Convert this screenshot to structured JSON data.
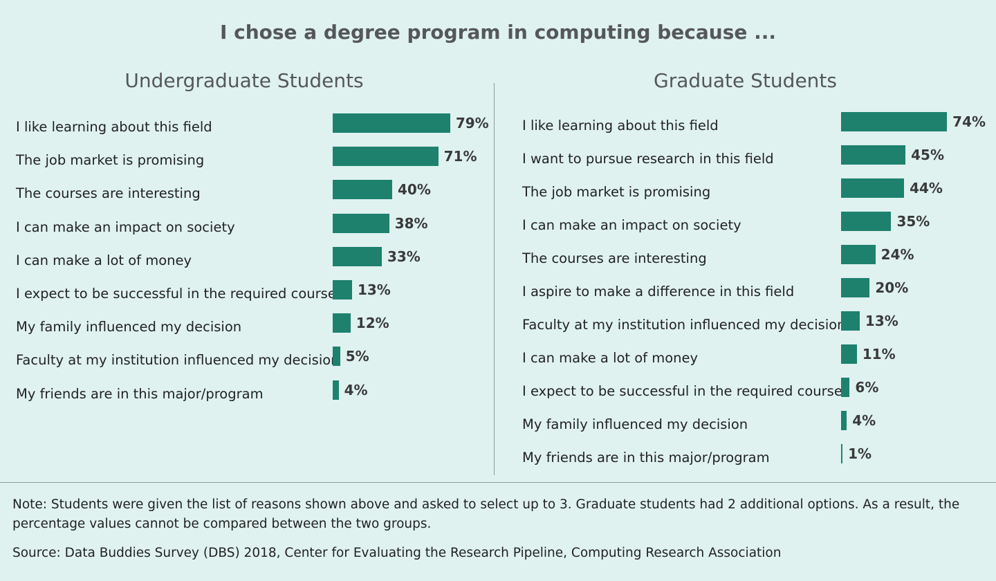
{
  "chart_data": [
    {
      "type": "bar",
      "orientation": "horizontal",
      "title": "I chose a degree program in computing because ...",
      "subtitle": "Undergraduate Students",
      "categories": [
        "I like learning about this field",
        "The job market is promising",
        "The courses are interesting",
        "I can make an impact on society",
        "I can make a lot of money",
        "I expect to be successful in the required courses",
        "My family influenced my decision",
        "Faculty at my institution influenced my decision",
        "My friends are in this major/program"
      ],
      "values": [
        79,
        71,
        40,
        38,
        33,
        13,
        12,
        5,
        4
      ],
      "value_labels": [
        "79%",
        "71%",
        "40%",
        "38%",
        "33%",
        "13%",
        "12%",
        "5%",
        "4%"
      ],
      "unit": "%",
      "color": "#1d816e"
    },
    {
      "type": "bar",
      "orientation": "horizontal",
      "subtitle": "Graduate Students",
      "categories": [
        "I like learning about this field",
        "I want to pursue research in this field",
        "The job market is promising",
        "I can make an impact on society",
        "The courses are interesting",
        "I aspire to make a difference in this field",
        "Faculty at my institution influenced my decision",
        "I can make a lot of money",
        "I expect to be successful in the required courses",
        "My family influenced my decision",
        "My friends are in this major/program"
      ],
      "values": [
        74,
        45,
        44,
        35,
        24,
        20,
        13,
        11,
        6,
        4,
        1
      ],
      "value_labels": [
        "74%",
        "45%",
        "44%",
        "35%",
        "24%",
        "20%",
        "13%",
        "11%",
        "6%",
        "4%",
        "1%"
      ],
      "unit": "%",
      "color": "#1d816e"
    }
  ],
  "note": "Note: Students were given the list of reasons shown above and asked to select up to 3. Graduate students had 2 additional options. As a result, the percentage values cannot be compared between the two groups.",
  "source": "Source: Data Buddies Survey (DBS) 2018, Center for Evaluating the Research Pipeline, Computing Research Association"
}
